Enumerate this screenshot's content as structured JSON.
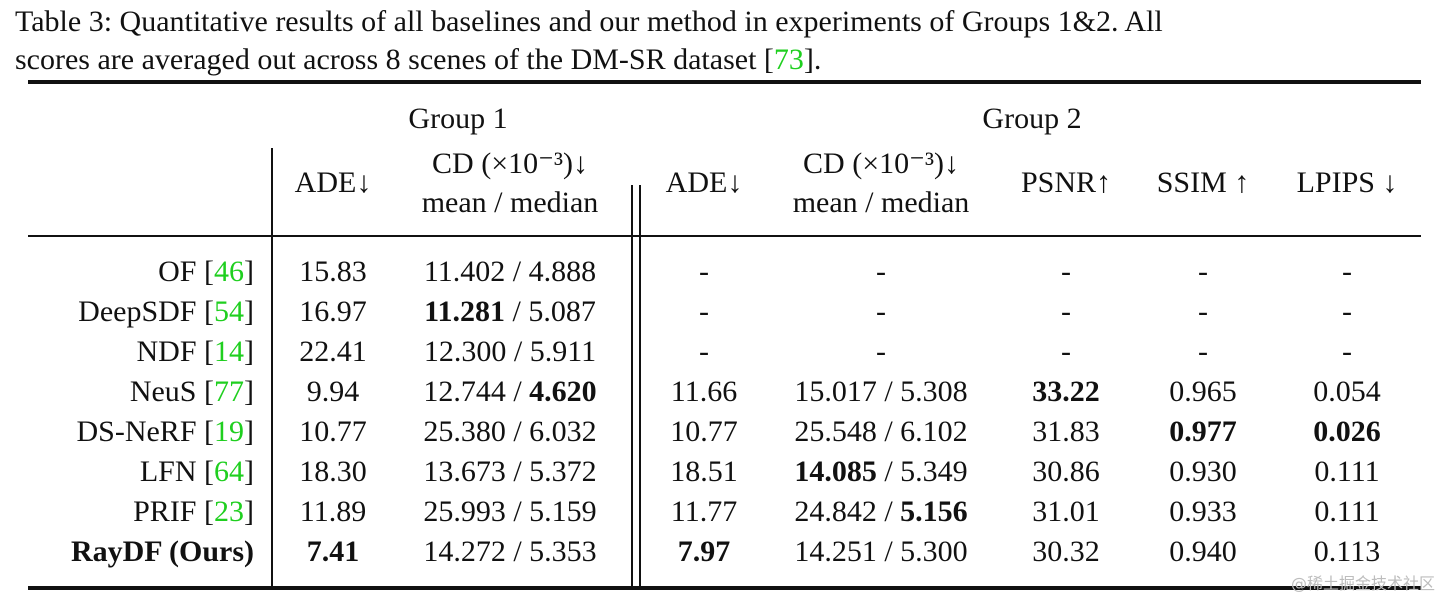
{
  "caption": {
    "line1": "Table 3: Quantitative results of all baselines and our method in experiments of Groups 1&2.  All",
    "line2_pre": "scores are averaged out across 8 scenes of the DM-SR dataset [",
    "line2_cite": "73",
    "line2_post": "]."
  },
  "header": {
    "group1": "Group 1",
    "group2": "Group 2",
    "ade": "ADE↓",
    "cd_line1": "CD (×10⁻³)↓",
    "cd_line2": "mean / median",
    "psnr": "PSNR↑",
    "ssim": "SSIM ↑",
    "lpips": "LPIPS ↓"
  },
  "rows": [
    {
      "name": "OF",
      "cite": "46",
      "bold_name": false,
      "g1_ade": "15.83",
      "g1_cd_mean": "11.402",
      "g1_cd_median": "4.888",
      "g2_ade": "-",
      "g2_cd": "-",
      "g2_cd_mean": "",
      "g2_cd_median": "",
      "psnr": "-",
      "ssim": "-",
      "lpips": "-",
      "bold": []
    },
    {
      "name": "DeepSDF",
      "cite": "54",
      "bold_name": false,
      "g1_ade": "16.97",
      "g1_cd_mean": "11.281",
      "g1_cd_median": "5.087",
      "g2_ade": "-",
      "g2_cd": "-",
      "g2_cd_mean": "",
      "g2_cd_median": "",
      "psnr": "-",
      "ssim": "-",
      "lpips": "-",
      "bold": [
        "g1_cd_mean"
      ]
    },
    {
      "name": "NDF",
      "cite": "14",
      "bold_name": false,
      "g1_ade": "22.41",
      "g1_cd_mean": "12.300",
      "g1_cd_median": "5.911",
      "g2_ade": "-",
      "g2_cd": "-",
      "g2_cd_mean": "",
      "g2_cd_median": "",
      "psnr": "-",
      "ssim": "-",
      "lpips": "-",
      "bold": []
    },
    {
      "name": "NeuS",
      "cite": "77",
      "bold_name": false,
      "g1_ade": "9.94",
      "g1_cd_mean": "12.744",
      "g1_cd_median": "4.620",
      "g2_ade": "11.66",
      "g2_cd": "",
      "g2_cd_mean": "15.017",
      "g2_cd_median": "5.308",
      "psnr": "33.22",
      "ssim": "0.965",
      "lpips": "0.054",
      "bold": [
        "g1_cd_median",
        "psnr"
      ]
    },
    {
      "name": "DS-NeRF",
      "cite": "19",
      "bold_name": false,
      "g1_ade": "10.77",
      "g1_cd_mean": "25.380",
      "g1_cd_median": "6.032",
      "g2_ade": "10.77",
      "g2_cd": "",
      "g2_cd_mean": "25.548",
      "g2_cd_median": "6.102",
      "psnr": "31.83",
      "ssim": "0.977",
      "lpips": "0.026",
      "bold": [
        "ssim",
        "lpips"
      ]
    },
    {
      "name": "LFN",
      "cite": "64",
      "bold_name": false,
      "g1_ade": "18.30",
      "g1_cd_mean": "13.673",
      "g1_cd_median": "5.372",
      "g2_ade": "18.51",
      "g2_cd": "",
      "g2_cd_mean": "14.085",
      "g2_cd_median": "5.349",
      "psnr": "30.86",
      "ssim": "0.930",
      "lpips": "0.111",
      "bold": [
        "g2_cd_mean"
      ]
    },
    {
      "name": "PRIF",
      "cite": "23",
      "bold_name": false,
      "g1_ade": "11.89",
      "g1_cd_mean": "25.993",
      "g1_cd_median": "5.159",
      "g2_ade": "11.77",
      "g2_cd": "",
      "g2_cd_mean": "24.842",
      "g2_cd_median": "5.156",
      "psnr": "31.01",
      "ssim": "0.933",
      "lpips": "0.111",
      "bold": [
        "g2_cd_median"
      ]
    },
    {
      "name": "RayDF (Ours)",
      "cite": "",
      "bold_name": true,
      "g1_ade": "7.41",
      "g1_cd_mean": "14.272",
      "g1_cd_median": "5.353",
      "g2_ade": "7.97",
      "g2_cd": "",
      "g2_cd_mean": "14.251",
      "g2_cd_median": "5.300",
      "psnr": "30.32",
      "ssim": "0.940",
      "lpips": "0.113",
      "bold": [
        "g1_ade",
        "g2_ade"
      ]
    }
  ],
  "watermark": "@稀土掘金技术社区",
  "colors": {
    "cite": "#1fcf1f",
    "text": "#111111"
  }
}
